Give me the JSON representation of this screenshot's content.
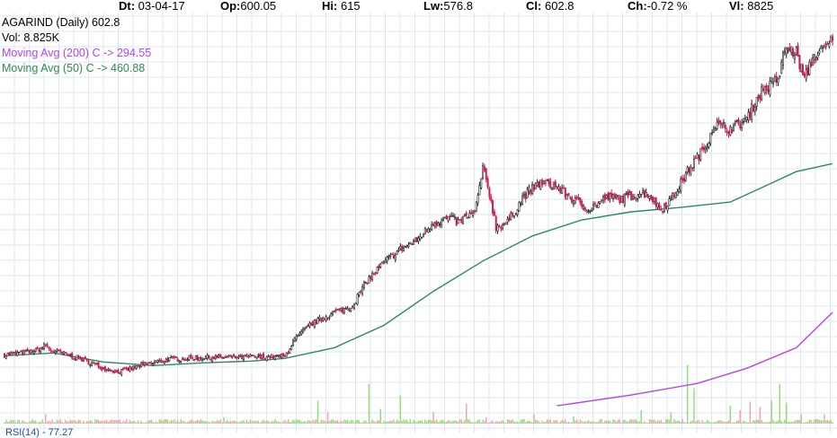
{
  "header": {
    "date_label": "Dt:",
    "date": "03-04-17",
    "open_label": "Op:",
    "open": "600.05",
    "high_label": "Hi:",
    "high": "615",
    "low_label": "Lw:",
    "low": "576.8",
    "close_label": "Cl:",
    "close": "602.8",
    "change_label": "Ch:",
    "change": "-0.72 %",
    "volume_label": "Vl:",
    "volume": "8825"
  },
  "legend": {
    "title": "AGARIND (Daily) 602.8",
    "volume": "Vol: 8.825K",
    "ma200": "Moving Avg (200) C -> 294.55",
    "ma50": "Moving Avg (50) C -> 460.88"
  },
  "subpanel_label": "RSI(14) - 77.27",
  "colors": {
    "up": "#222222",
    "down": "#cc1f4a",
    "vol_up": "#90dd7a",
    "vol_down": "#f4a0b0",
    "ma200": "#b444ee",
    "ma50": "#2e8b57",
    "grid": "#dfe6f0"
  },
  "chart_data": {
    "type": "candlestick",
    "symbol": "AGARIND",
    "interval": "Daily",
    "ylim": [
      170,
      630
    ],
    "volume_max": 60000,
    "grid": true,
    "ohlc_anchors": [
      [
        0,
        247
      ],
      [
        10,
        249
      ],
      [
        20,
        252
      ],
      [
        25,
        258
      ],
      [
        28,
        252
      ],
      [
        40,
        246
      ],
      [
        50,
        240
      ],
      [
        60,
        232
      ],
      [
        70,
        228
      ],
      [
        85,
        236
      ],
      [
        100,
        242
      ],
      [
        120,
        244
      ],
      [
        140,
        244
      ],
      [
        160,
        245
      ],
      [
        170,
        245
      ],
      [
        175,
        262
      ],
      [
        185,
        280
      ],
      [
        200,
        295
      ],
      [
        210,
        300
      ],
      [
        220,
        330
      ],
      [
        230,
        350
      ],
      [
        240,
        365
      ],
      [
        250,
        375
      ],
      [
        260,
        395
      ],
      [
        270,
        400
      ],
      [
        275,
        395
      ],
      [
        280,
        402
      ],
      [
        285,
        405
      ],
      [
        290,
        455
      ],
      [
        295,
        420
      ],
      [
        298,
        390
      ],
      [
        305,
        395
      ],
      [
        315,
        425
      ],
      [
        325,
        440
      ],
      [
        335,
        435
      ],
      [
        345,
        420
      ],
      [
        355,
        410
      ],
      [
        365,
        423
      ],
      [
        375,
        422
      ],
      [
        385,
        428
      ],
      [
        390,
        428
      ],
      [
        398,
        410
      ],
      [
        405,
        423
      ],
      [
        415,
        455
      ],
      [
        425,
        480
      ],
      [
        430,
        505
      ],
      [
        440,
        500
      ],
      [
        450,
        510
      ],
      [
        455,
        530
      ],
      [
        460,
        545
      ],
      [
        465,
        548
      ],
      [
        470,
        560
      ],
      [
        473,
        590
      ],
      [
        480,
        585
      ],
      [
        485,
        555
      ],
      [
        490,
        580
      ],
      [
        495,
        586
      ],
      [
        500,
        594
      ],
      [
        502,
        603
      ]
    ],
    "ma50": [
      [
        0,
        246
      ],
      [
        30,
        249
      ],
      [
        60,
        239
      ],
      [
        90,
        235
      ],
      [
        120,
        238
      ],
      [
        150,
        240
      ],
      [
        170,
        243
      ],
      [
        200,
        255
      ],
      [
        230,
        280
      ],
      [
        260,
        318
      ],
      [
        290,
        352
      ],
      [
        320,
        380
      ],
      [
        350,
        398
      ],
      [
        380,
        407
      ],
      [
        410,
        412
      ],
      [
        440,
        418
      ],
      [
        460,
        435
      ],
      [
        480,
        452
      ],
      [
        502,
        461
      ]
    ],
    "ma200": [
      [
        335,
        190
      ],
      [
        380,
        202
      ],
      [
        420,
        215
      ],
      [
        450,
        232
      ],
      [
        480,
        255
      ],
      [
        502,
        294.55
      ]
    ],
    "volume_spikes": [
      [
        25,
        9000
      ],
      [
        133,
        6000
      ],
      [
        190,
        22000
      ],
      [
        196,
        11000
      ],
      [
        221,
        38000
      ],
      [
        228,
        14000
      ],
      [
        240,
        27000
      ],
      [
        260,
        11000
      ],
      [
        280,
        19000
      ],
      [
        292,
        6000
      ],
      [
        321,
        9000
      ],
      [
        345,
        7000
      ],
      [
        386,
        13000
      ],
      [
        404,
        11000
      ],
      [
        414,
        56000
      ],
      [
        418,
        34000
      ],
      [
        440,
        17000
      ],
      [
        446,
        13000
      ],
      [
        452,
        21000
      ],
      [
        458,
        16000
      ],
      [
        465,
        22000
      ],
      [
        470,
        38000
      ],
      [
        474,
        20000
      ],
      [
        483,
        9000
      ],
      [
        497,
        8825
      ]
    ]
  }
}
